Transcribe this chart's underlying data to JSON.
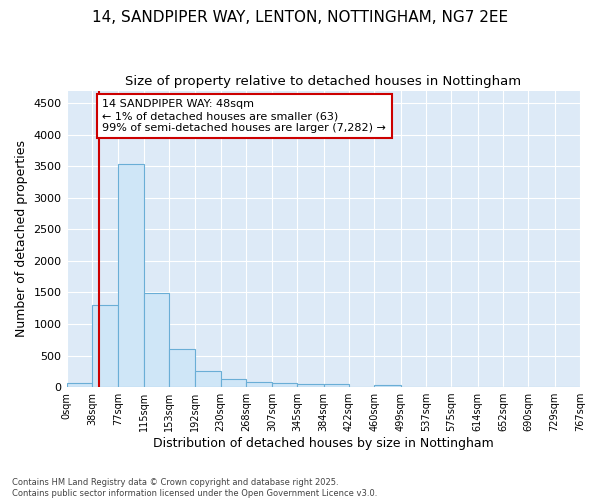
{
  "title1": "14, SANDPIPER WAY, LENTON, NOTTINGHAM, NG7 2EE",
  "title2": "Size of property relative to detached houses in Nottingham",
  "xlabel": "Distribution of detached houses by size in Nottingham",
  "ylabel": "Number of detached properties",
  "bar_values": [
    63,
    1300,
    3540,
    1490,
    600,
    255,
    130,
    80,
    60,
    55,
    55,
    0,
    40,
    0,
    0,
    0,
    0,
    0,
    0,
    0
  ],
  "bin_edges": [
    0,
    38,
    77,
    115,
    153,
    192,
    230,
    268,
    307,
    345,
    384,
    422,
    460,
    499,
    537,
    575,
    614,
    652,
    690,
    729,
    767
  ],
  "bar_facecolor": "#cfe6f7",
  "bar_edgecolor": "#6aaed6",
  "vline_x": 48,
  "vline_color": "#cc0000",
  "ylim": [
    0,
    4700
  ],
  "yticks": [
    0,
    500,
    1000,
    1500,
    2000,
    2500,
    3000,
    3500,
    4000,
    4500
  ],
  "annotation_text": "14 SANDPIPER WAY: 48sqm\n← 1% of detached houses are smaller (63)\n99% of semi-detached houses are larger (7,282) →",
  "annotation_box_color": "#cc0000",
  "annotation_text_color": "#000000",
  "footnote": "Contains HM Land Registry data © Crown copyright and database right 2025.\nContains public sector information licensed under the Open Government Licence v3.0.",
  "bg_color": "#ddeaf7",
  "grid_color": "#ffffff",
  "title1_fontsize": 11,
  "title2_fontsize": 9.5,
  "xlabel_fontsize": 9,
  "ylabel_fontsize": 9,
  "annot_fontsize": 8,
  "tick_fontsize": 7,
  "footnote_fontsize": 6,
  "tick_labels": [
    "0sqm",
    "38sqm",
    "77sqm",
    "115sqm",
    "153sqm",
    "192sqm",
    "230sqm",
    "268sqm",
    "307sqm",
    "345sqm",
    "384sqm",
    "422sqm",
    "460sqm",
    "499sqm",
    "537sqm",
    "575sqm",
    "614sqm",
    "652sqm",
    "690sqm",
    "729sqm",
    "767sqm"
  ]
}
